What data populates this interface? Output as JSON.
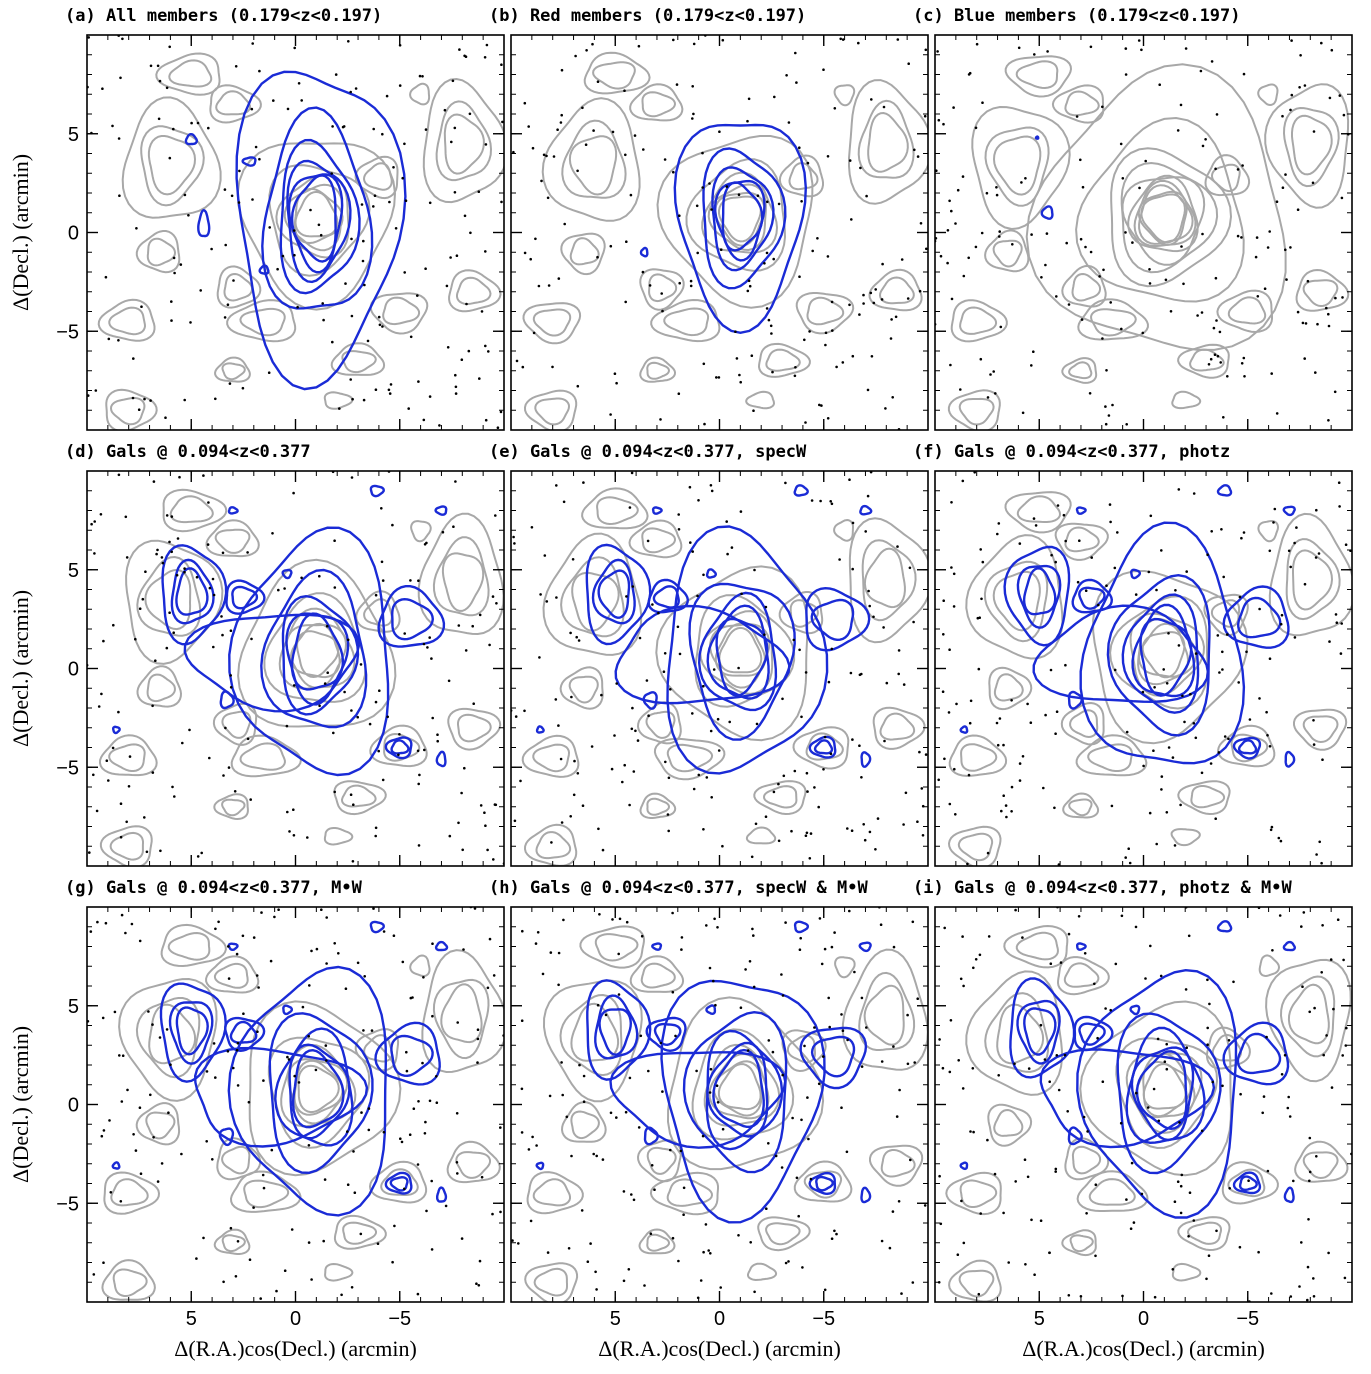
{
  "chart_data": [
    {
      "type": "contour",
      "title": "(a) All members (0.179<z<0.197)",
      "xlim": [
        10,
        -10
      ],
      "ylim": [
        -10,
        10
      ],
      "yticks": [
        5,
        0,
        {
          "value": -5,
          "label": "−5"
        }
      ],
      "y_label": "Δ(Decl.) (arcmin)"
    },
    {
      "type": "contour",
      "title": "(b) Red members (0.179<z<0.197)",
      "xlim": [
        10,
        -10
      ],
      "ylim": [
        -10,
        10
      ]
    },
    {
      "type": "contour",
      "title": "(c) Blue members (0.179<z<0.197)",
      "xlim": [
        10,
        -10
      ],
      "ylim": [
        -10,
        10
      ]
    },
    {
      "type": "contour",
      "title": "(d) Gals @ 0.094<z<0.377",
      "xlim": [
        10,
        -10
      ],
      "ylim": [
        -10,
        10
      ],
      "yticks": [
        5,
        0,
        {
          "value": -5,
          "label": "−5"
        }
      ],
      "y_label": "Δ(Decl.) (arcmin)"
    },
    {
      "type": "contour",
      "title": "(e) Gals @ 0.094<z<0.377, specW",
      "xlim": [
        10,
        -10
      ],
      "ylim": [
        -10,
        10
      ]
    },
    {
      "type": "contour",
      "title": "(f) Gals @ 0.094<z<0.377, photz",
      "xlim": [
        10,
        -10
      ],
      "ylim": [
        -10,
        10
      ]
    },
    {
      "type": "contour",
      "title": "(g) Gals @ 0.094<z<0.377, M•W",
      "xlim": [
        10,
        -10
      ],
      "ylim": [
        -10,
        10
      ],
      "yticks": [
        5,
        0,
        {
          "value": -5,
          "label": "−5"
        }
      ],
      "y_label": "Δ(Decl.) (arcmin)",
      "xticks": [
        5,
        0,
        {
          "value": -5,
          "label": "−5"
        }
      ],
      "x_label": "Δ(R.A.)cos(Decl.) (arcmin)"
    },
    {
      "type": "contour",
      "title": "(h) Gals @ 0.094<z<0.377, specW & M•W",
      "xlim": [
        10,
        -10
      ],
      "ylim": [
        -10,
        10
      ],
      "xticks": [
        5,
        0,
        {
          "value": -5,
          "label": "−5"
        }
      ],
      "x_label": "Δ(R.A.)cos(Decl.) (arcmin)"
    },
    {
      "type": "contour",
      "title": "(i) Gals @ 0.094<z<0.377, photz & M•W",
      "xlim": [
        10,
        -10
      ],
      "ylim": [
        -10,
        10
      ],
      "xticks": [
        5,
        0,
        {
          "value": -5,
          "label": "−5"
        }
      ],
      "x_label": "Δ(R.A.)cos(Decl.) (arcmin)"
    }
  ]
}
